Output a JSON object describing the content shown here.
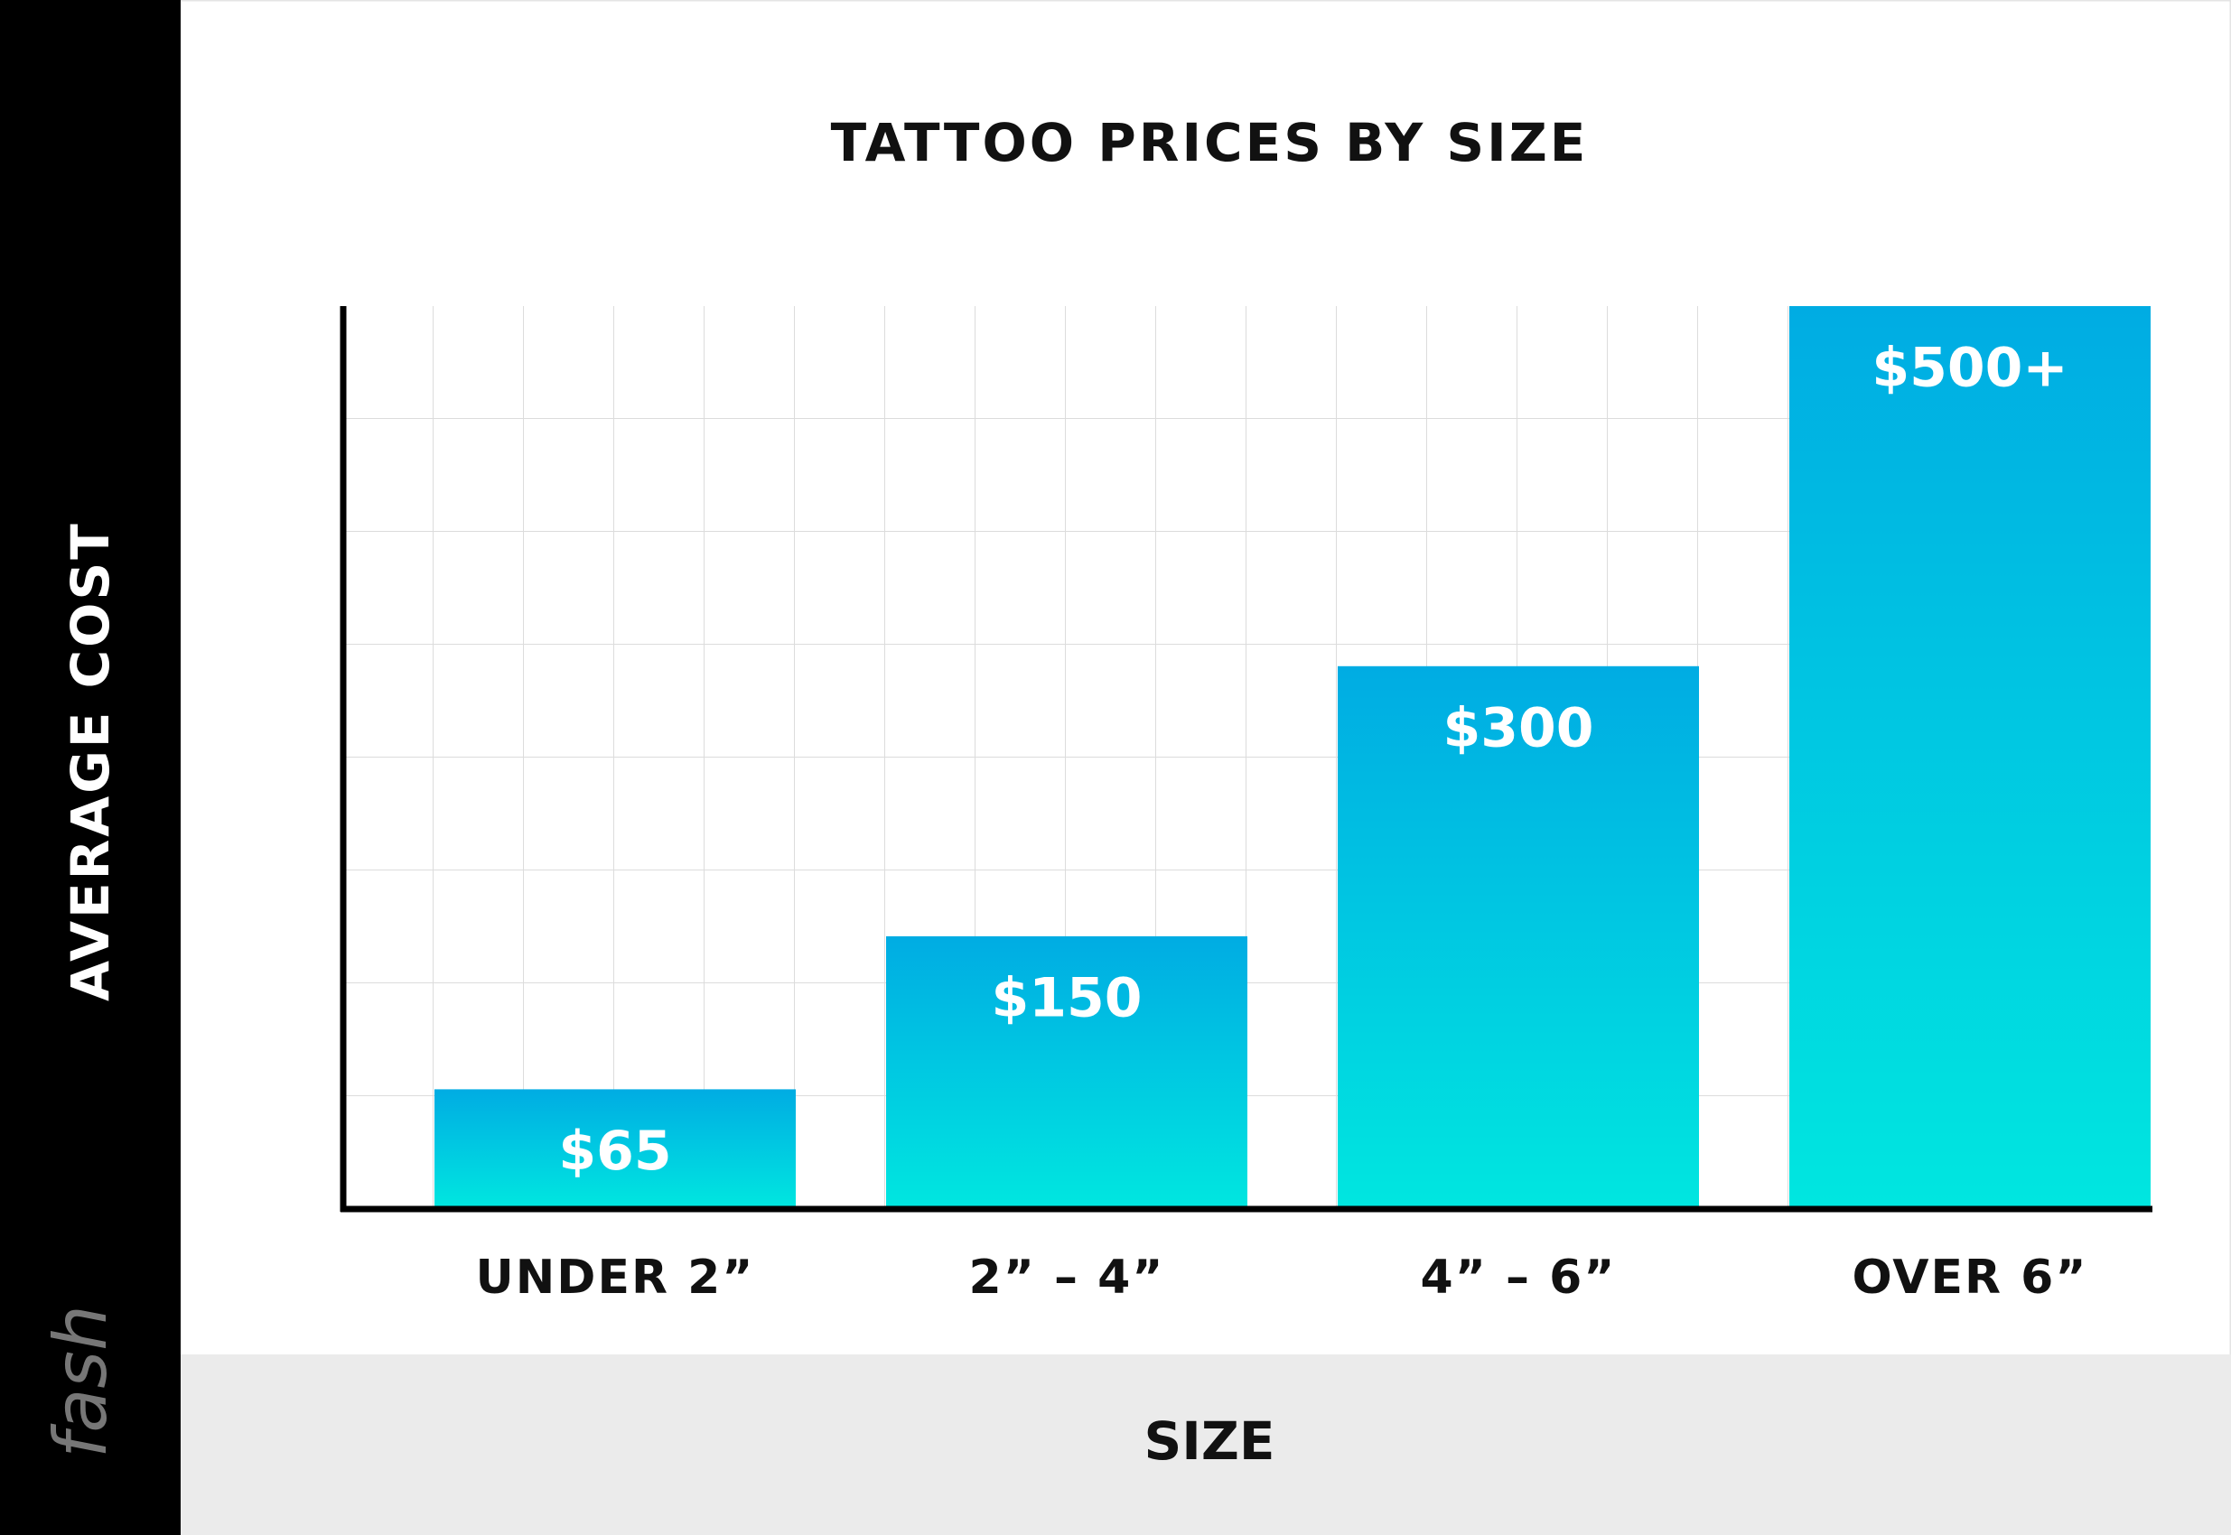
{
  "chart_data": {
    "type": "bar",
    "title": "TATTOO PRICES BY SIZE",
    "x_label": "SIZE",
    "y_label": "AVERAGE COST",
    "watermark": "fash",
    "categories": [
      "UNDER 2”",
      "2” – 4”",
      "4” – 6”",
      "OVER 6”"
    ],
    "values": [
      65,
      150,
      300,
      500
    ],
    "value_labels": [
      "$65",
      "$150",
      "$300",
      "$500+"
    ],
    "color_top": "#00ace3",
    "color_bottom": "#00e6e0",
    "ylim": [
      0,
      500
    ],
    "grid": true
  }
}
